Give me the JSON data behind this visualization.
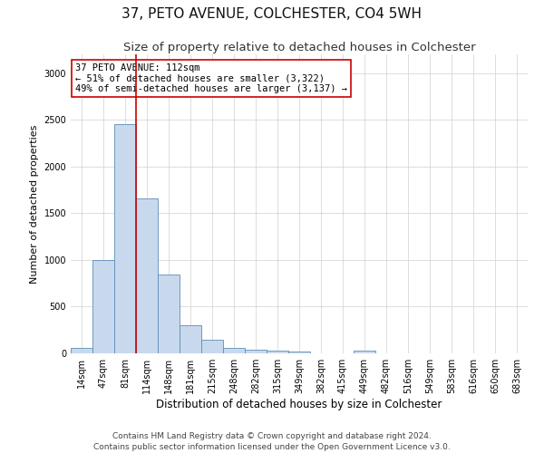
{
  "title": "37, PETO AVENUE, COLCHESTER, CO4 5WH",
  "subtitle": "Size of property relative to detached houses in Colchester",
  "xlabel": "Distribution of detached houses by size in Colchester",
  "ylabel": "Number of detached properties",
  "bar_labels": [
    "14sqm",
    "47sqm",
    "81sqm",
    "114sqm",
    "148sqm",
    "181sqm",
    "215sqm",
    "248sqm",
    "282sqm",
    "315sqm",
    "349sqm",
    "382sqm",
    "415sqm",
    "449sqm",
    "482sqm",
    "516sqm",
    "549sqm",
    "583sqm",
    "616sqm",
    "650sqm",
    "683sqm"
  ],
  "bar_values": [
    55,
    1000,
    2450,
    1660,
    840,
    300,
    150,
    55,
    40,
    30,
    20,
    0,
    0,
    30,
    0,
    0,
    0,
    0,
    0,
    0,
    0
  ],
  "bar_color": "#c9d9ed",
  "bar_edge_color": "#5b8db8",
  "vline_index": 2,
  "annotation_text": "37 PETO AVENUE: 112sqm\n← 51% of detached houses are smaller (3,322)\n49% of semi-detached houses are larger (3,137) →",
  "annotation_box_color": "#ffffff",
  "annotation_edge_color": "#cc0000",
  "vline_color": "#cc0000",
  "ylim": [
    0,
    3200
  ],
  "yticks": [
    0,
    500,
    1000,
    1500,
    2000,
    2500,
    3000
  ],
  "footer_line1": "Contains HM Land Registry data © Crown copyright and database right 2024.",
  "footer_line2": "Contains public sector information licensed under the Open Government Licence v3.0.",
  "background_color": "#ffffff",
  "grid_color": "#d0d0d0",
  "title_fontsize": 11,
  "subtitle_fontsize": 9.5,
  "axis_label_fontsize": 8,
  "tick_fontsize": 7,
  "annotation_fontsize": 7.5,
  "footer_fontsize": 6.5
}
